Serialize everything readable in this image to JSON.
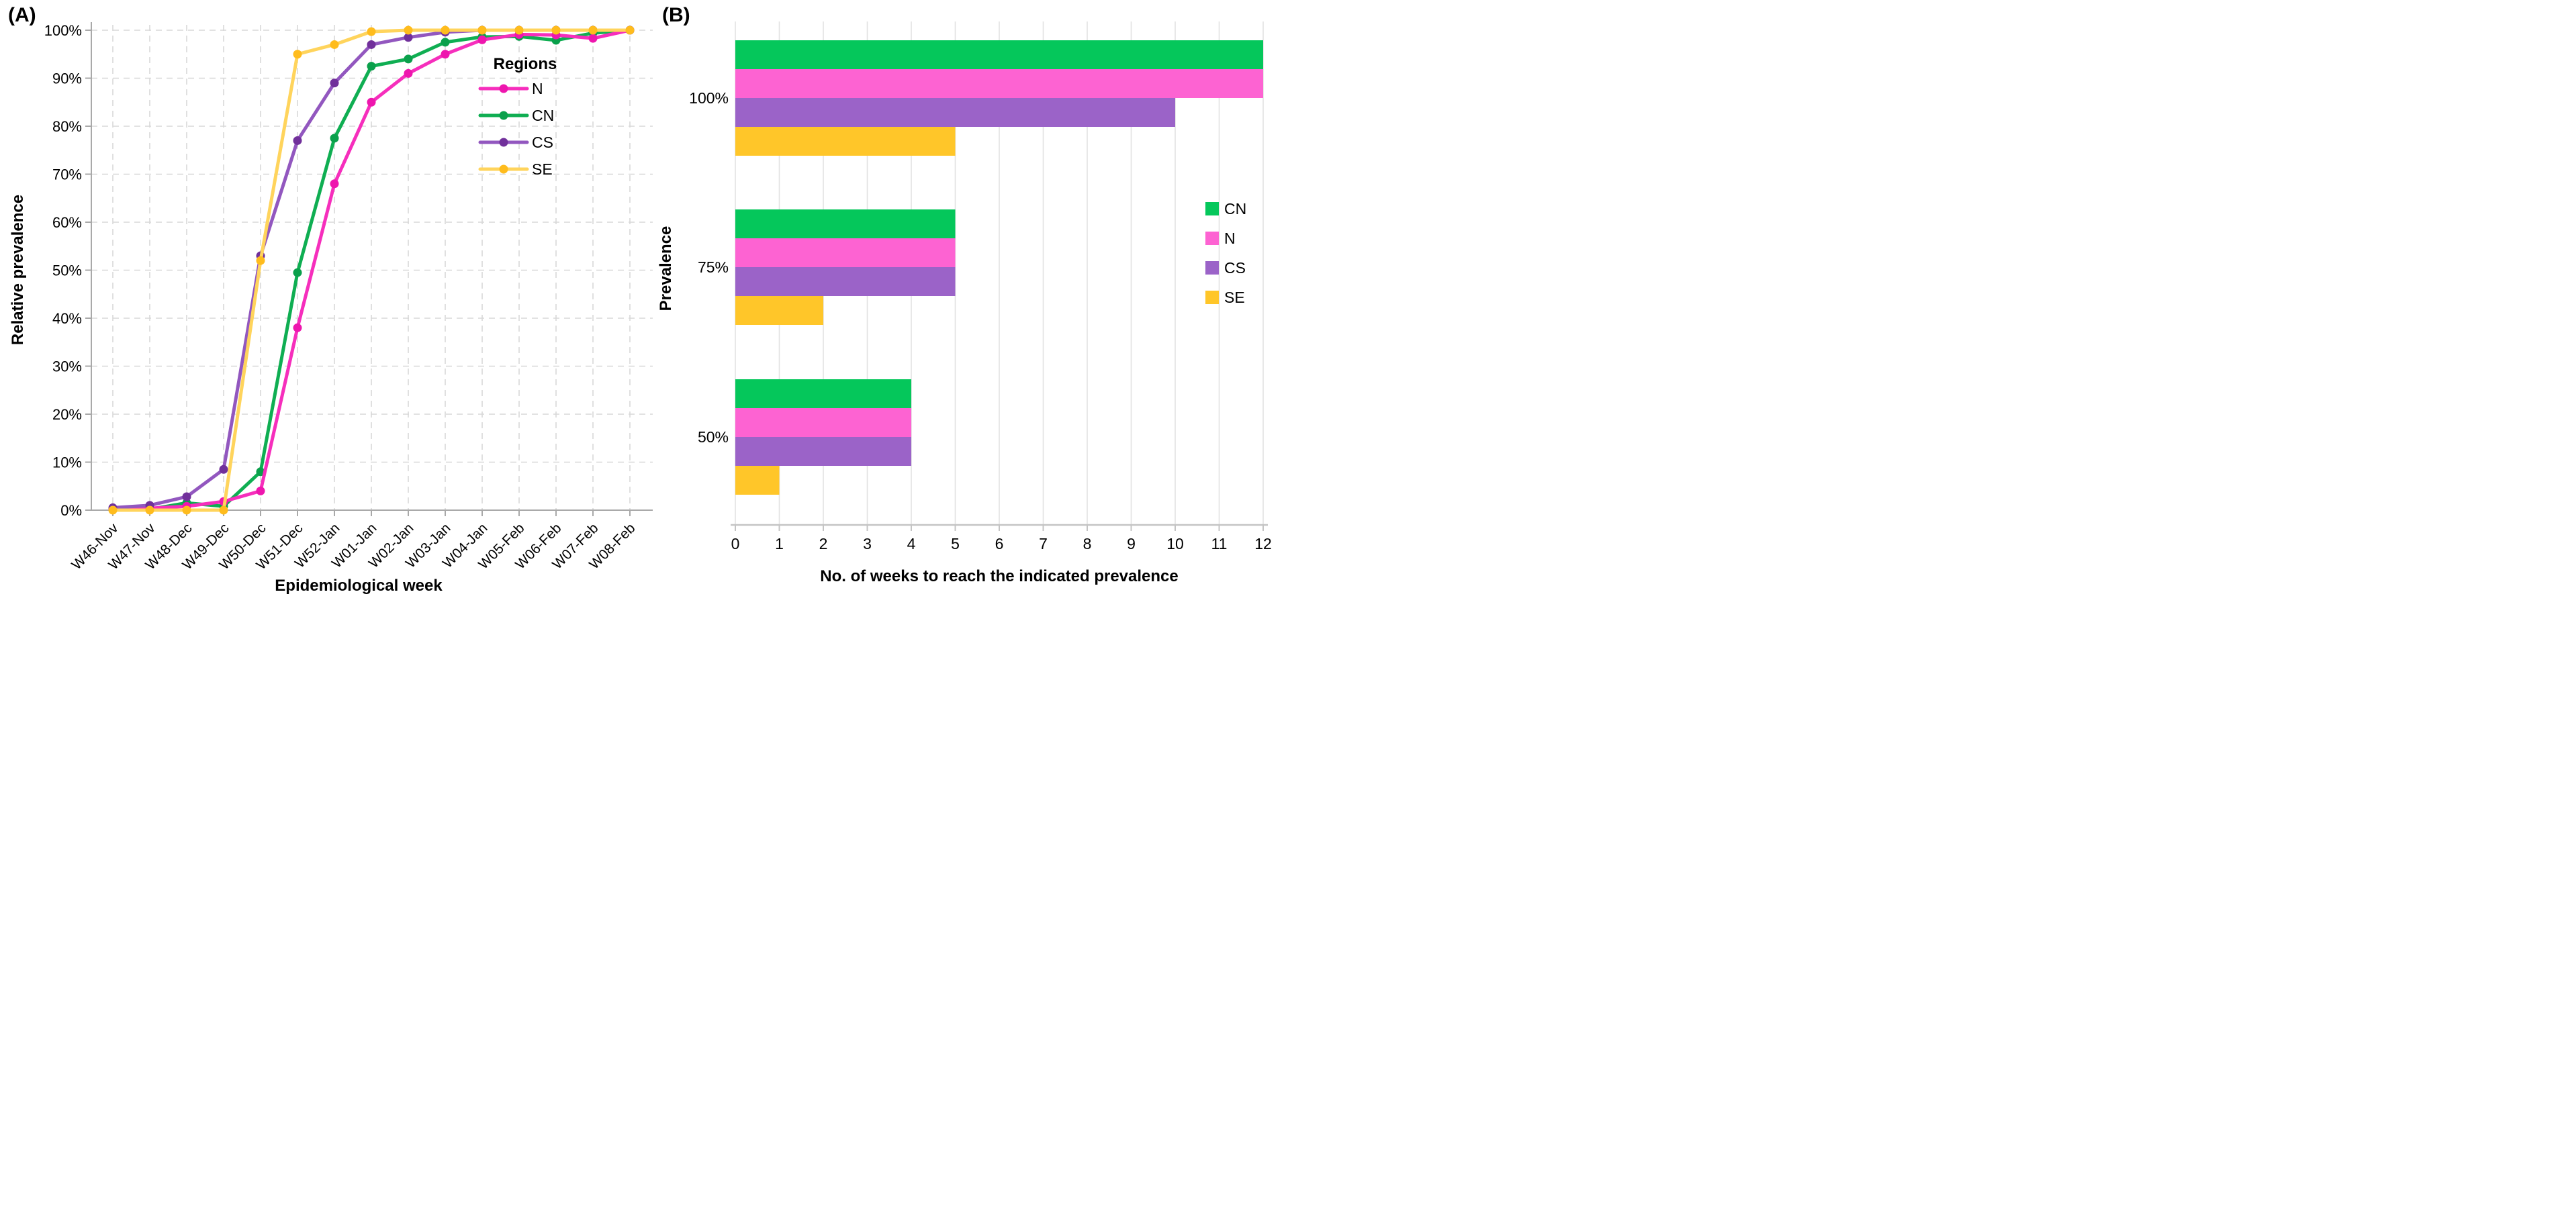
{
  "panels": {
    "a_label": "(A)",
    "b_label": "(B)"
  },
  "chart_data": [
    {
      "id": "A",
      "type": "line",
      "title": "",
      "xlabel": "Epidemiological week",
      "ylabel": "Relative prevalence",
      "ylim": [
        0,
        100
      ],
      "grid": "dashed",
      "y_ticks": [
        "0%",
        "10%",
        "20%",
        "30%",
        "40%",
        "50%",
        "60%",
        "70%",
        "80%",
        "90%",
        "100%"
      ],
      "categories": [
        "W46-Nov",
        "W47-Nov",
        "W48-Dec",
        "W49-Dec",
        "W50-Dec",
        "W51-Dec",
        "W52-Jan",
        "W01-Jan",
        "W02-Jan",
        "W03-Jan",
        "W04-Jan",
        "W05-Feb",
        "W06-Feb",
        "W07-Feb",
        "W08-Feb"
      ],
      "legend_title": "Regions",
      "legend_position": "inside-upper-right",
      "draw_order": [
        "CN",
        "N",
        "CS",
        "SE"
      ],
      "series": [
        {
          "name": "N",
          "line_color": "#F62EBC",
          "marker_color": "#EE16AE",
          "values": [
            0.2,
            0.4,
            0.8,
            1.8,
            4,
            38,
            68,
            85,
            91,
            95,
            98,
            99.1,
            99,
            98.3,
            100
          ]
        },
        {
          "name": "CN",
          "line_color": "#0FAE52",
          "marker_color": "#0AA04B",
          "values": [
            0.1,
            0.2,
            1.5,
            0.8,
            8,
            49.5,
            77.5,
            92.5,
            94,
            97.5,
            98.6,
            98.7,
            97.9,
            99.4,
            100
          ]
        },
        {
          "name": "CS",
          "line_color": "#9257BF",
          "marker_color": "#71309B",
          "values": [
            0.5,
            1,
            2.8,
            8.5,
            53,
            77,
            89,
            97,
            98.5,
            99.6,
            100,
            100,
            100,
            100,
            100
          ]
        },
        {
          "name": "SE",
          "line_color": "#FFD45C",
          "marker_color": "#FFBC1D",
          "values": [
            0,
            0,
            0,
            0,
            52,
            95,
            97,
            99.7,
            100,
            100,
            100,
            100,
            100,
            100,
            100
          ]
        }
      ]
    },
    {
      "id": "B",
      "type": "bar",
      "orientation": "horizontal",
      "title": "",
      "xlabel": "No. of weeks to reach the indicated prevalence",
      "ylabel": "Prevalence",
      "xlim": [
        0,
        12
      ],
      "x_ticks": [
        "0",
        "1",
        "2",
        "3",
        "4",
        "5",
        "6",
        "7",
        "8",
        "9",
        "10",
        "11",
        "12"
      ],
      "grid": "solid-vertical",
      "categories": [
        "100%",
        "75%",
        "50%"
      ],
      "legend_position": "inside-right",
      "series": [
        {
          "name": "CN",
          "color": "#05C75B",
          "values": [
            12,
            5,
            4
          ]
        },
        {
          "name": "N",
          "color": "#FD63D2",
          "values": [
            12,
            5,
            4
          ]
        },
        {
          "name": "CS",
          "color": "#9B63C8",
          "values": [
            10,
            5,
            4
          ]
        },
        {
          "name": "SE",
          "color": "#FFC629",
          "values": [
            5,
            2,
            1
          ]
        }
      ]
    }
  ]
}
